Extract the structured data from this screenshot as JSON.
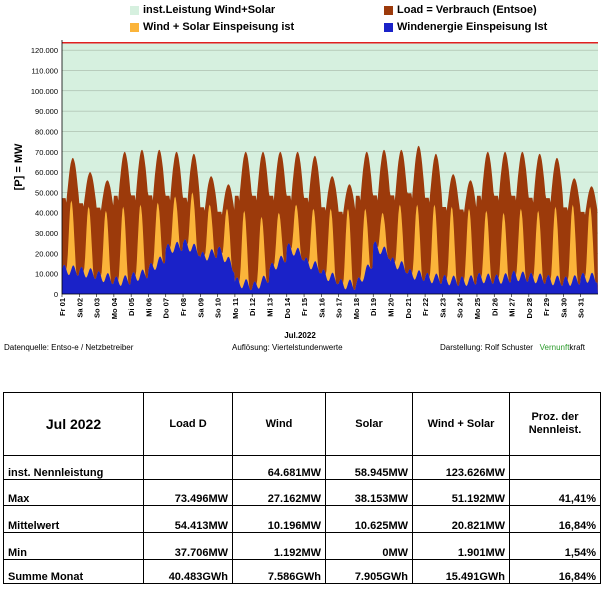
{
  "legend": [
    {
      "label": "inst.Leistung Wind+Solar",
      "color": "#d6f0df"
    },
    {
      "label": "Load =  Verbrauch (Entsoe)",
      "color": "#9c3a0b"
    },
    {
      "label": "Wind + Solar Einspeisung ist",
      "color": "#fbb43a"
    },
    {
      "label": "Windenergie Einspeisung Ist",
      "color": "#1a22c8"
    }
  ],
  "chart_data": {
    "type": "area",
    "title": "",
    "xlabel": "Jul.2022",
    "ylabel": "[P] = MW",
    "ylim": [
      0,
      125000
    ],
    "yticks": [
      "0",
      "10.000",
      "20.000",
      "30.000",
      "40.000",
      "50.000",
      "60.000",
      "70.000",
      "80.000",
      "90.000",
      "100.000",
      "110.000",
      "120.000"
    ],
    "xticks": [
      "Fr 01",
      "Sa 02",
      "So 03",
      "Mo 04",
      "Di 05",
      "Mi 06",
      "Do 07",
      "Fr 08",
      "Sa 09",
      "So 10",
      "Mo 11",
      "Di 12",
      "Mi 13",
      "Do 14",
      "Fr 15",
      "Sa 16",
      "So 17",
      "Mo 18",
      "Di 19",
      "Mi 20",
      "Do 21",
      "Fr 22",
      "Sa 23",
      "So 24",
      "Mo 25",
      "Di 26",
      "Mi 27",
      "Do 28",
      "Fr 29",
      "Sa 30",
      "So 31"
    ],
    "grid": true,
    "colors": {
      "installed": "#d6f0df",
      "load": "#9c3a0b",
      "windsolar": "#fbb43a",
      "wind": "#1a22c8",
      "line": "#e02020"
    },
    "installed_capacity_mw": 123626,
    "daily": [
      {
        "day": "01",
        "load_max": 67000,
        "load_min": 45000,
        "ws_max": 46000,
        "wind": 12000
      },
      {
        "day": "02",
        "load_max": 60000,
        "load_min": 43000,
        "ws_max": 43000,
        "wind": 11000
      },
      {
        "day": "03",
        "load_max": 56000,
        "load_min": 41000,
        "ws_max": 41000,
        "wind": 9000
      },
      {
        "day": "04",
        "load_max": 70000,
        "load_min": 46000,
        "ws_max": 43000,
        "wind": 6000
      },
      {
        "day": "05",
        "load_max": 71000,
        "load_min": 46000,
        "ws_max": 44000,
        "wind": 8000
      },
      {
        "day": "06",
        "load_max": 71000,
        "load_min": 46000,
        "ws_max": 45000,
        "wind": 12000
      },
      {
        "day": "07",
        "load_max": 70000,
        "load_min": 46000,
        "ws_max": 48000,
        "wind": 22000
      },
      {
        "day": "08",
        "load_max": 69000,
        "load_min": 45000,
        "ws_max": 50000,
        "wind": 25000
      },
      {
        "day": "09",
        "load_max": 58000,
        "load_min": 41000,
        "ws_max": 44000,
        "wind": 18000
      },
      {
        "day": "10",
        "load_max": 54000,
        "load_min": 39000,
        "ws_max": 42000,
        "wind": 22000
      },
      {
        "day": "11",
        "load_max": 70000,
        "load_min": 46000,
        "ws_max": 41000,
        "wind": 6000
      },
      {
        "day": "12",
        "load_max": 70000,
        "load_min": 46000,
        "ws_max": 38000,
        "wind": 3000
      },
      {
        "day": "13",
        "load_max": 70000,
        "load_min": 46000,
        "ws_max": 40000,
        "wind": 12000
      },
      {
        "day": "14",
        "load_max": 70000,
        "load_min": 46000,
        "ws_max": 44000,
        "wind": 23000
      },
      {
        "day": "15",
        "load_max": 68000,
        "load_min": 45000,
        "ws_max": 42000,
        "wind": 16000
      },
      {
        "day": "16",
        "load_max": 58000,
        "load_min": 41000,
        "ws_max": 42000,
        "wind": 10000
      },
      {
        "day": "17",
        "load_max": 54000,
        "load_min": 39000,
        "ws_max": 42000,
        "wind": 5000
      },
      {
        "day": "18",
        "load_max": 70000,
        "load_min": 46000,
        "ws_max": 42000,
        "wind": 4000
      },
      {
        "day": "19",
        "load_max": 71000,
        "load_min": 46000,
        "ws_max": 40000,
        "wind": 24000
      },
      {
        "day": "20",
        "load_max": 71000,
        "load_min": 46000,
        "ws_max": 44000,
        "wind": 16000
      },
      {
        "day": "21",
        "load_max": 73000,
        "load_min": 47000,
        "ws_max": 44000,
        "wind": 10000
      },
      {
        "day": "22",
        "load_max": 69000,
        "load_min": 45000,
        "ws_max": 44000,
        "wind": 8000
      },
      {
        "day": "23",
        "load_max": 59000,
        "load_min": 41000,
        "ws_max": 43000,
        "wind": 7000
      },
      {
        "day": "24",
        "load_max": 56000,
        "load_min": 40000,
        "ws_max": 42000,
        "wind": 6000
      },
      {
        "day": "25",
        "load_max": 70000,
        "load_min": 46000,
        "ws_max": 41000,
        "wind": 8000
      },
      {
        "day": "26",
        "load_max": 70000,
        "load_min": 46000,
        "ws_max": 40000,
        "wind": 7000
      },
      {
        "day": "27",
        "load_max": 70000,
        "load_min": 46000,
        "ws_max": 42000,
        "wind": 9000
      },
      {
        "day": "28",
        "load_max": 69000,
        "load_min": 45000,
        "ws_max": 41000,
        "wind": 8000
      },
      {
        "day": "29",
        "load_max": 67000,
        "load_min": 45000,
        "ws_max": 43000,
        "wind": 7000
      },
      {
        "day": "30",
        "load_max": 57000,
        "load_min": 41000,
        "ws_max": 44000,
        "wind": 6000
      },
      {
        "day": "31",
        "load_max": 53000,
        "load_min": 39000,
        "ws_max": 43000,
        "wind": 8000
      }
    ]
  },
  "footer": {
    "source": "Datenquelle:  Entso-e  / Netzbetreiber",
    "resolution": "Auflösung: Viertelstundenwerte",
    "author": "Darstellung:  Rolf Schuster",
    "brand_a": "Vernunft",
    "brand_b": "kraft"
  },
  "table": {
    "headers": [
      "Jul 2022",
      "Load D",
      "Wind",
      "Solar",
      "Wind + Solar",
      "Proz. der Nennleist."
    ],
    "rows": [
      [
        "inst. Nennleistung",
        "",
        "64.681MW",
        "58.945MW",
        "123.626MW",
        ""
      ],
      [
        "Max",
        "73.496MW",
        "27.162MW",
        "38.153MW",
        "51.192MW",
        "41,41%"
      ],
      [
        "Mittelwert",
        "54.413MW",
        "10.196MW",
        "10.625MW",
        "20.821MW",
        "16,84%"
      ],
      [
        "Min",
        "37.706MW",
        "1.192MW",
        "0MW",
        "1.901MW",
        "1,54%"
      ],
      [
        "Summe Monat",
        "40.483GWh",
        "7.586GWh",
        "7.905GWh",
        "15.491GWh",
        "16,84%"
      ]
    ]
  }
}
